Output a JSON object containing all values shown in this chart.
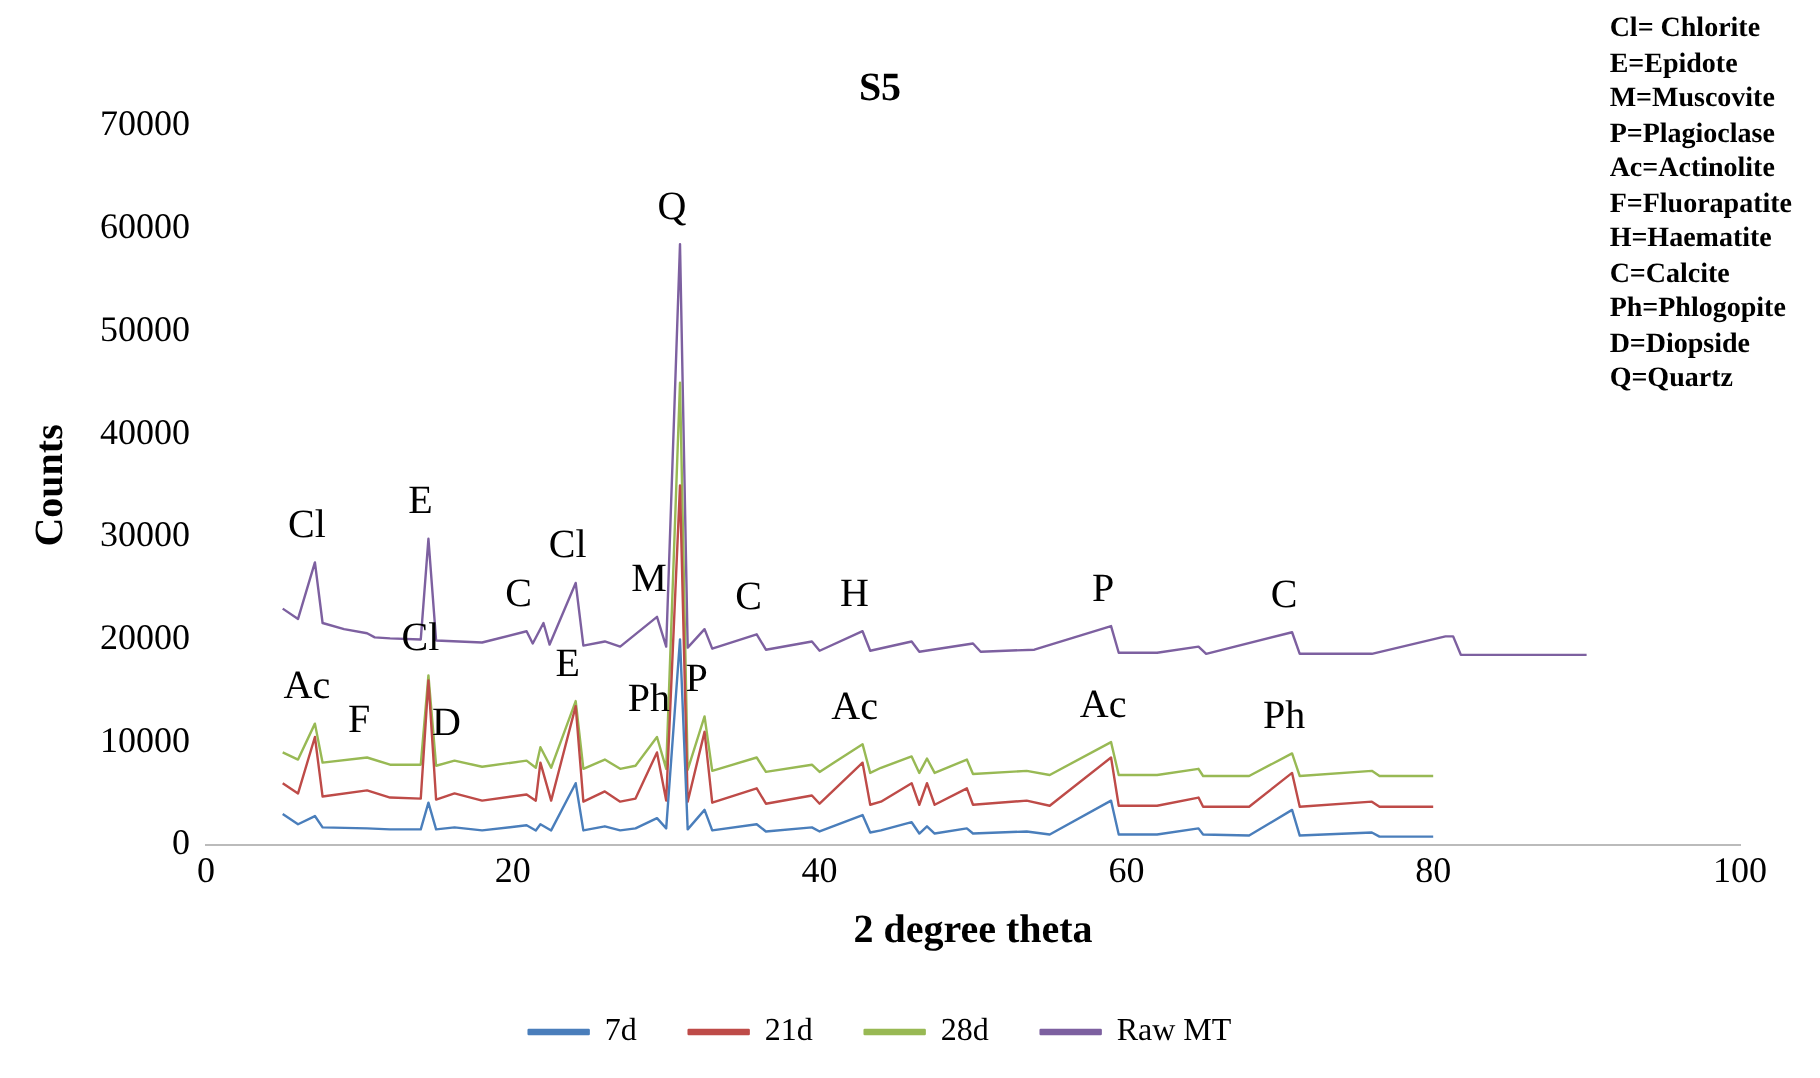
{
  "chart_data": {
    "type": "line",
    "title": "S5",
    "xlabel": "2 degree theta",
    "ylabel": "Counts",
    "xlim": [
      0,
      100
    ],
    "xticks": [
      0,
      20,
      40,
      60,
      80,
      100
    ],
    "ylim": [
      0,
      70000
    ],
    "yticks": [
      0,
      10000,
      20000,
      30000,
      40000,
      50000,
      60000,
      70000
    ],
    "grid": false,
    "legend": "bottom",
    "marker": "none",
    "line_style": "solid",
    "series": [
      {
        "name": "7d",
        "color": "#4a7ebb",
        "x": [
          5,
          6,
          7.1,
          7.6,
          10.5,
          12,
          14,
          14.5,
          15,
          16.2,
          18,
          20.9,
          21.5,
          21.8,
          22.5,
          24.1,
          24.6,
          26,
          27,
          28,
          29.4,
          30,
          30.9,
          31.4,
          32.5,
          33,
          35.9,
          36.5,
          39.5,
          40,
          42.8,
          43.3,
          44,
          46,
          46.5,
          47,
          47.5,
          49.6,
          50,
          53.5,
          55,
          59,
          59.5,
          62,
          64.7,
          65,
          68,
          70.8,
          71.3,
          76,
          76.5,
          80
        ],
        "values": [
          3000,
          2000,
          2800,
          1700,
          1600,
          1500,
          1500,
          4100,
          1500,
          1700,
          1400,
          1900,
          1400,
          2000,
          1400,
          6000,
          1400,
          1800,
          1400,
          1600,
          2600,
          1600,
          20000,
          1500,
          3400,
          1400,
          2000,
          1300,
          1700,
          1300,
          2900,
          1200,
          1400,
          2200,
          1100,
          1800,
          1100,
          1600,
          1100,
          1300,
          1000,
          4300,
          1000,
          1000,
          1600,
          1000,
          900,
          3400,
          900,
          1200,
          800,
          800
        ]
      },
      {
        "name": "21d",
        "color": "#be4b48",
        "x": [
          5,
          6,
          7.1,
          7.6,
          10.5,
          12,
          14,
          14.5,
          15,
          16.2,
          18,
          20.9,
          21.5,
          21.8,
          22.5,
          24.1,
          24.6,
          26,
          27,
          28,
          29.4,
          30,
          30.9,
          31.4,
          32.5,
          33,
          35.9,
          36.5,
          39.5,
          40,
          42.8,
          43.3,
          44,
          46,
          46.5,
          47,
          47.5,
          49.6,
          50,
          53.5,
          55,
          59,
          59.5,
          62,
          64.7,
          65,
          68,
          70.8,
          71.3,
          76,
          76.5,
          80
        ],
        "values": [
          6000,
          5000,
          10500,
          4700,
          5300,
          4600,
          4500,
          16000,
          4400,
          5000,
          4300,
          4900,
          4300,
          8000,
          4300,
          13500,
          4200,
          5200,
          4200,
          4500,
          9000,
          4300,
          35000,
          4200,
          11000,
          4100,
          5500,
          4000,
          4800,
          4000,
          8000,
          3900,
          4200,
          6000,
          3900,
          6000,
          3900,
          5500,
          3900,
          4300,
          3800,
          8500,
          3800,
          3800,
          4600,
          3700,
          3700,
          7000,
          3700,
          4200,
          3700,
          3700
        ]
      },
      {
        "name": "28d",
        "color": "#98b954",
        "x": [
          5,
          6,
          7.1,
          7.6,
          10.5,
          12,
          14,
          14.5,
          15,
          16.2,
          18,
          20.9,
          21.5,
          21.8,
          22.5,
          24.1,
          24.6,
          26,
          27,
          28,
          29.4,
          30,
          30.9,
          31.4,
          32.5,
          33,
          35.9,
          36.5,
          39.5,
          40,
          42.8,
          43.3,
          44,
          46,
          46.5,
          47,
          47.5,
          49.6,
          50,
          53.5,
          55,
          59,
          59.5,
          62,
          64.7,
          65,
          68,
          70.8,
          71.3,
          76,
          76.5,
          80
        ],
        "values": [
          9000,
          8300,
          11800,
          8000,
          8500,
          7800,
          7800,
          16500,
          7700,
          8200,
          7600,
          8200,
          7500,
          9500,
          7500,
          14000,
          7400,
          8300,
          7400,
          7700,
          10500,
          7400,
          45000,
          7300,
          12500,
          7200,
          8500,
          7100,
          7800,
          7100,
          9800,
          7000,
          7500,
          8600,
          7000,
          8400,
          7000,
          8300,
          6900,
          7200,
          6800,
          10000,
          6800,
          6800,
          7400,
          6700,
          6700,
          8900,
          6700,
          7200,
          6700,
          6700
        ]
      },
      {
        "name": "Raw MT",
        "color": "#7d60a0",
        "x": [
          5,
          6,
          7.1,
          7.6,
          9,
          10.5,
          11,
          12,
          14,
          14.5,
          15,
          18,
          20.9,
          21.3,
          22,
          22.4,
          24.1,
          24.6,
          26,
          27,
          29.4,
          30,
          30.9,
          31.4,
          32.5,
          33,
          35.9,
          36.5,
          39.5,
          40,
          42.8,
          43.3,
          46,
          46.5,
          50,
          50.5,
          54,
          59,
          59.5,
          62,
          64.7,
          65.2,
          70.8,
          71.3,
          76,
          80.8,
          81.3,
          81.8,
          90
        ],
        "values": [
          23000,
          22000,
          27500,
          21600,
          21000,
          20600,
          20200,
          20100,
          20000,
          29800,
          19900,
          19700,
          20800,
          19600,
          21600,
          19500,
          25500,
          19400,
          19800,
          19300,
          22200,
          19300,
          58500,
          19200,
          21000,
          19100,
          20500,
          19000,
          19800,
          18900,
          20800,
          18900,
          19800,
          18800,
          19600,
          18800,
          19000,
          21300,
          18700,
          18700,
          19300,
          18600,
          20700,
          18600,
          18600,
          20300,
          20300,
          18500,
          18500
        ]
      }
    ],
    "annotations": [
      {
        "text": "Cl",
        "x": 7.1,
        "y": 27500
      },
      {
        "text": "E",
        "x": 14.5,
        "y": 29800
      },
      {
        "text": "C",
        "x": 20.9,
        "y": 20800
      },
      {
        "text": "Cl",
        "x": 24.1,
        "y": 25500
      },
      {
        "text": "M",
        "x": 29.4,
        "y": 22200
      },
      {
        "text": "Q",
        "x": 30.9,
        "y": 58500
      },
      {
        "text": "C",
        "x": 35.9,
        "y": 20500
      },
      {
        "text": "H",
        "x": 42.8,
        "y": 20800
      },
      {
        "text": "P",
        "x": 59,
        "y": 21300
      },
      {
        "text": "C",
        "x": 70.8,
        "y": 20700
      },
      {
        "text": "Ac",
        "x": 7.1,
        "y": 11800
      },
      {
        "text": "F",
        "x": 10.5,
        "y": 8500
      },
      {
        "text": "Cl",
        "x": 14.5,
        "y": 16500
      },
      {
        "text": "D",
        "x": 16.2,
        "y": 8200
      },
      {
        "text": "E",
        "x": 24.1,
        "y": 14000
      },
      {
        "text": "Ph",
        "x": 29.4,
        "y": 10500
      },
      {
        "text": "P",
        "x": 32.5,
        "y": 12500
      },
      {
        "text": "Ac",
        "x": 42.8,
        "y": 9800
      },
      {
        "text": "Ac",
        "x": 59,
        "y": 10000
      },
      {
        "text": "Ph",
        "x": 70.8,
        "y": 8900
      },
      "Cl= Chlorite",
      "E=Epidote",
      "M=Muscovite",
      "P=Plagioclase",
      "Ac=Actinolite",
      "F=Fluorapatite",
      "H=Haematite",
      "C=Calcite",
      "Ph=Phlogopite",
      "D=Diopside",
      "Q=Quartz"
    ]
  }
}
